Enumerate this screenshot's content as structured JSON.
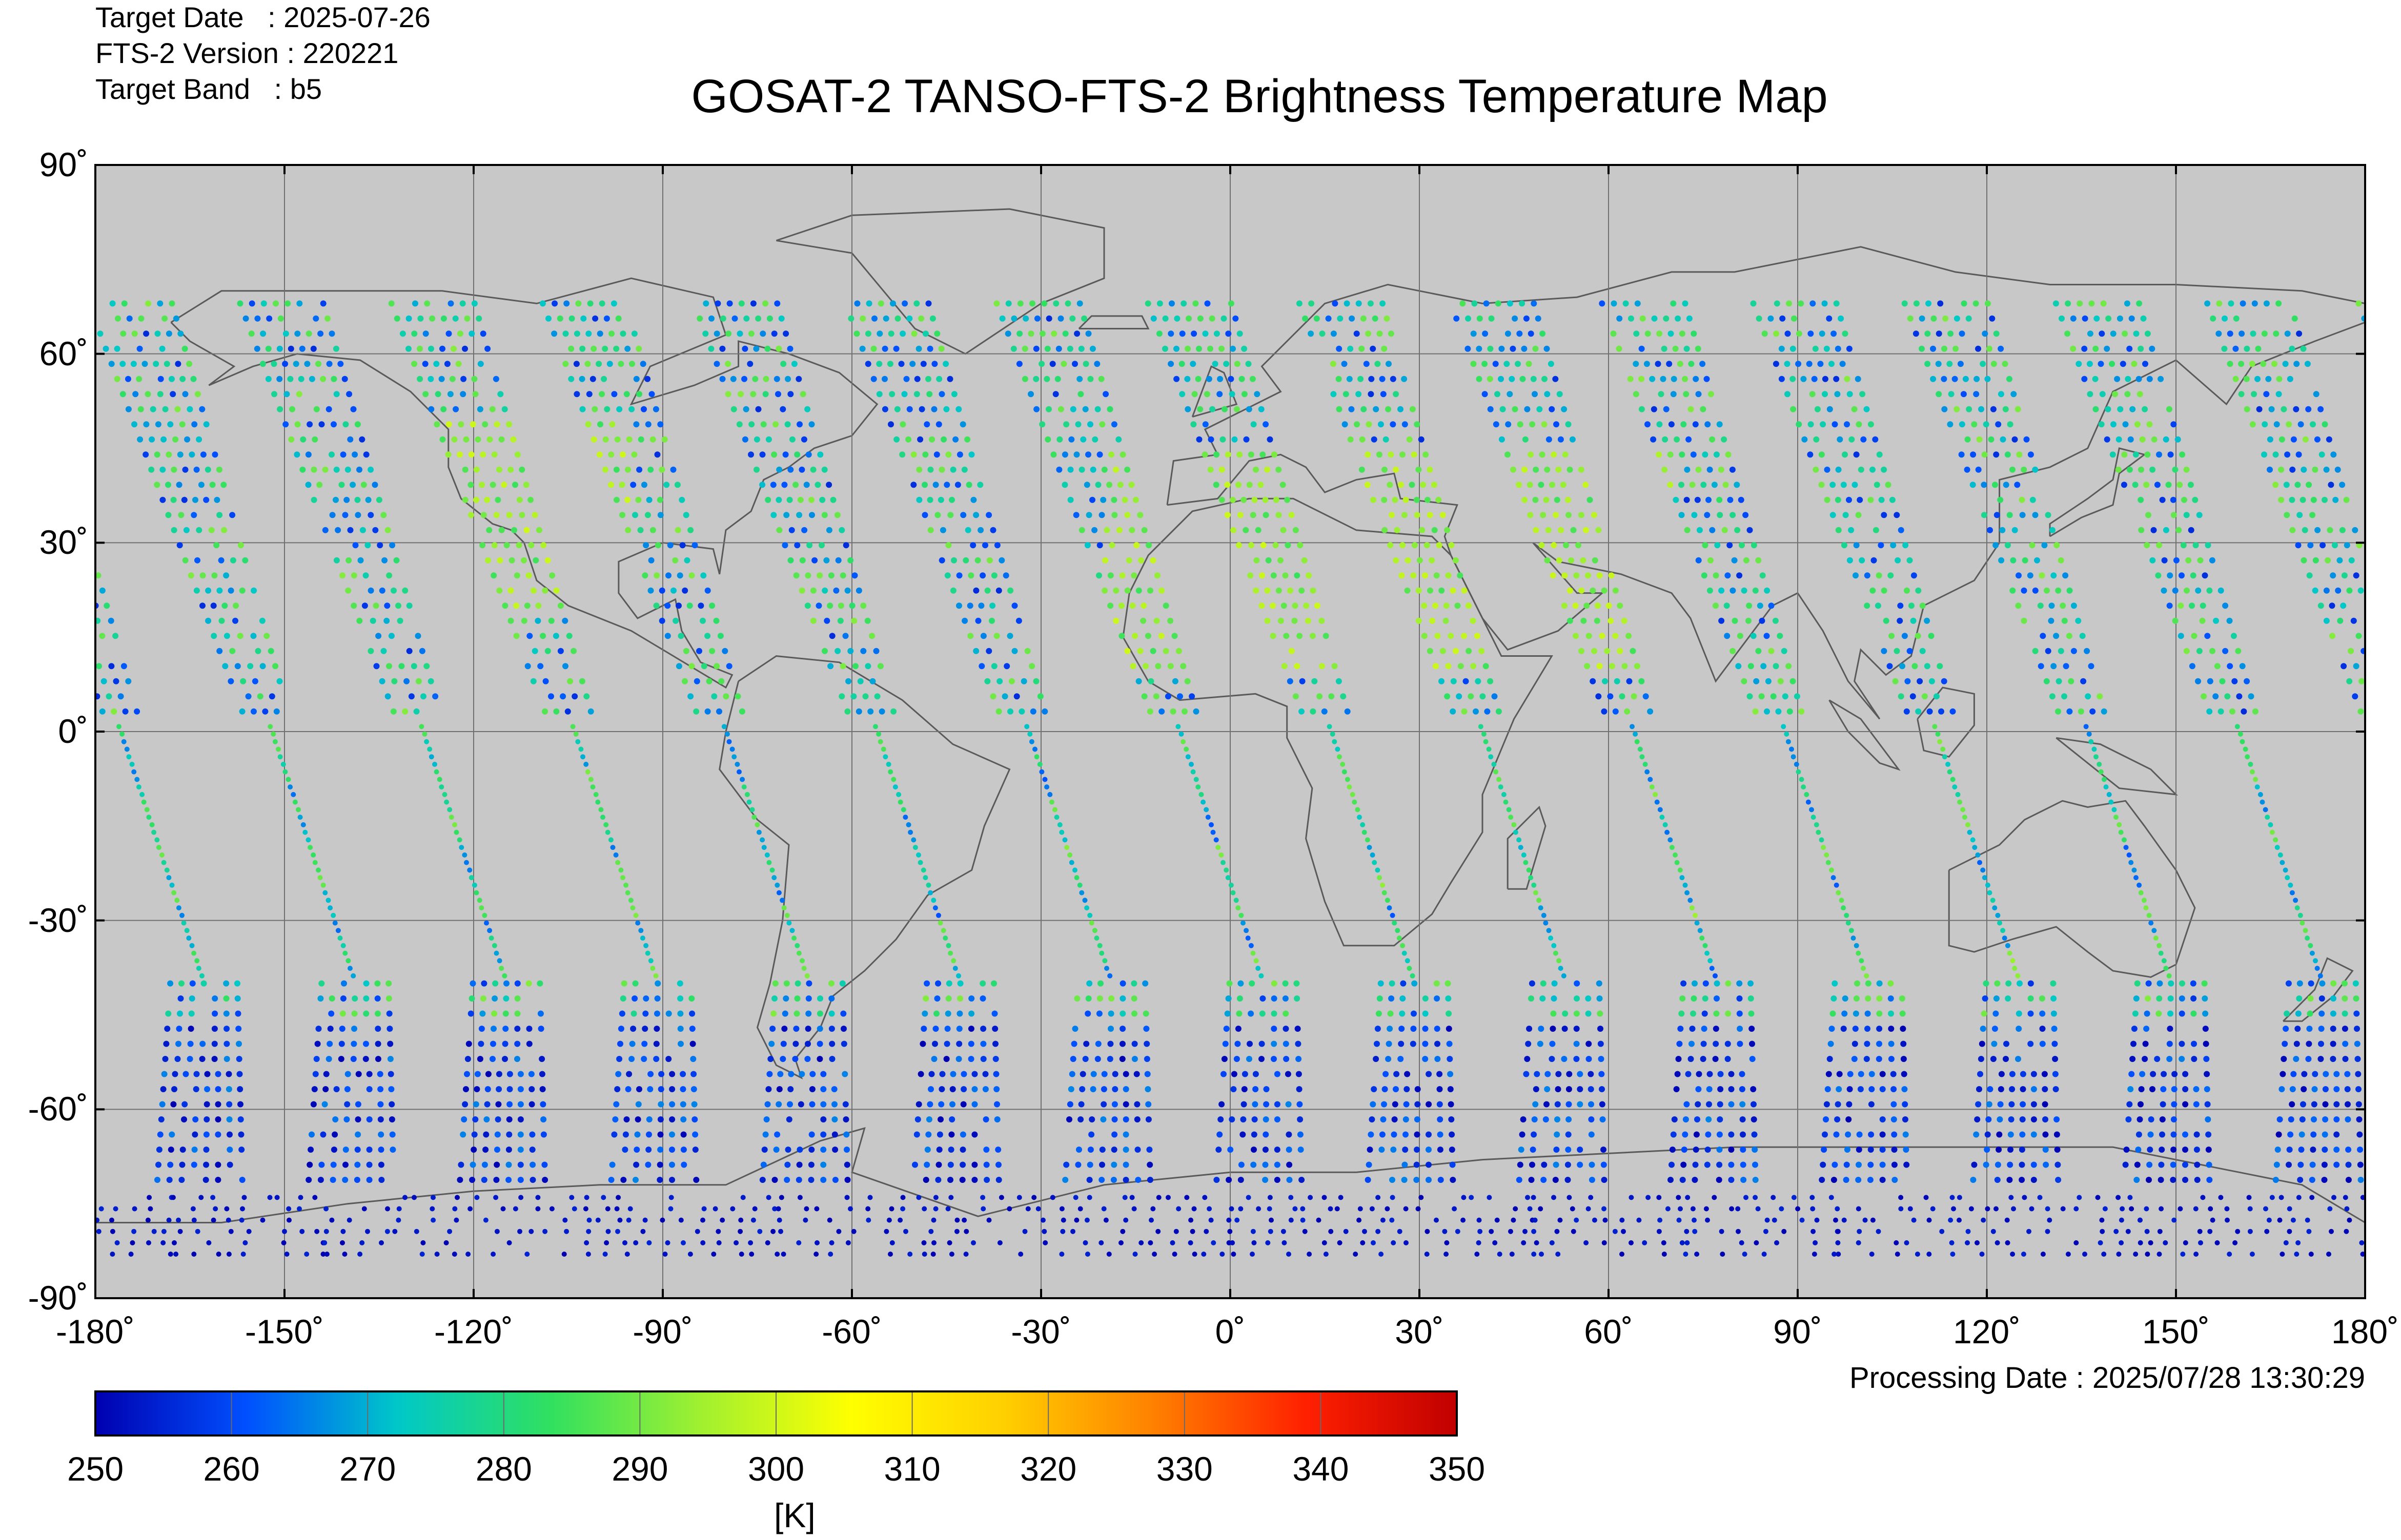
{
  "header": {
    "target_date_label": "Target Date   : 2025-07-26",
    "fts_version_label": "FTS-2 Version : 220221",
    "target_band_label": "Target Band   : b5",
    "title": "GOSAT-2 TANSO-FTS-2 Brightness Temperature Map"
  },
  "footer": {
    "processing_date": "Processing Date : 2025/07/28 13:30:29"
  },
  "map": {
    "projection": "equirectangular",
    "lon_range": [
      -180,
      180
    ],
    "lat_range": [
      -90,
      90
    ],
    "lon_ticks": [
      "-180˚",
      "-150˚",
      "-120˚",
      "-90˚",
      "-60˚",
      "-30˚",
      "0˚",
      "30˚",
      "60˚",
      "90˚",
      "120˚",
      "150˚",
      "180˚"
    ],
    "lat_ticks": [
      "90˚",
      "60˚",
      "30˚",
      "0˚",
      "-30˚",
      "-60˚",
      "-90˚"
    ],
    "background_color": "#c8c8c8",
    "grid": true,
    "swath_count": 15,
    "approx_equator_crossing_lons": [
      -180,
      -156,
      -132,
      -108,
      -84,
      -60,
      -36,
      -12,
      12,
      36,
      60,
      84,
      108,
      132,
      156
    ]
  },
  "colorbar": {
    "min": 250,
    "max": 350,
    "ticks": [
      "250",
      "260",
      "270",
      "280",
      "290",
      "300",
      "310",
      "320",
      "330",
      "340",
      "350"
    ],
    "unit": "[K]",
    "colormap": "jet",
    "color_stops": [
      "#0000b0",
      "#0050ff",
      "#00c8c8",
      "#30e060",
      "#a0f030",
      "#ffff00",
      "#ffd000",
      "#ff8000",
      "#ff2000",
      "#c00000"
    ]
  },
  "chart_data": {
    "type": "scatter",
    "title": "GOSAT-2 TANSO-FTS-2 Brightness Temperature Map",
    "xlabel": "",
    "ylabel": "",
    "xlim": [
      -180,
      180
    ],
    "ylim": [
      -90,
      90
    ],
    "grid": true,
    "colorbar_label": "[K]",
    "colorbar_range": [
      250,
      350
    ],
    "legend": "bottom"
  }
}
